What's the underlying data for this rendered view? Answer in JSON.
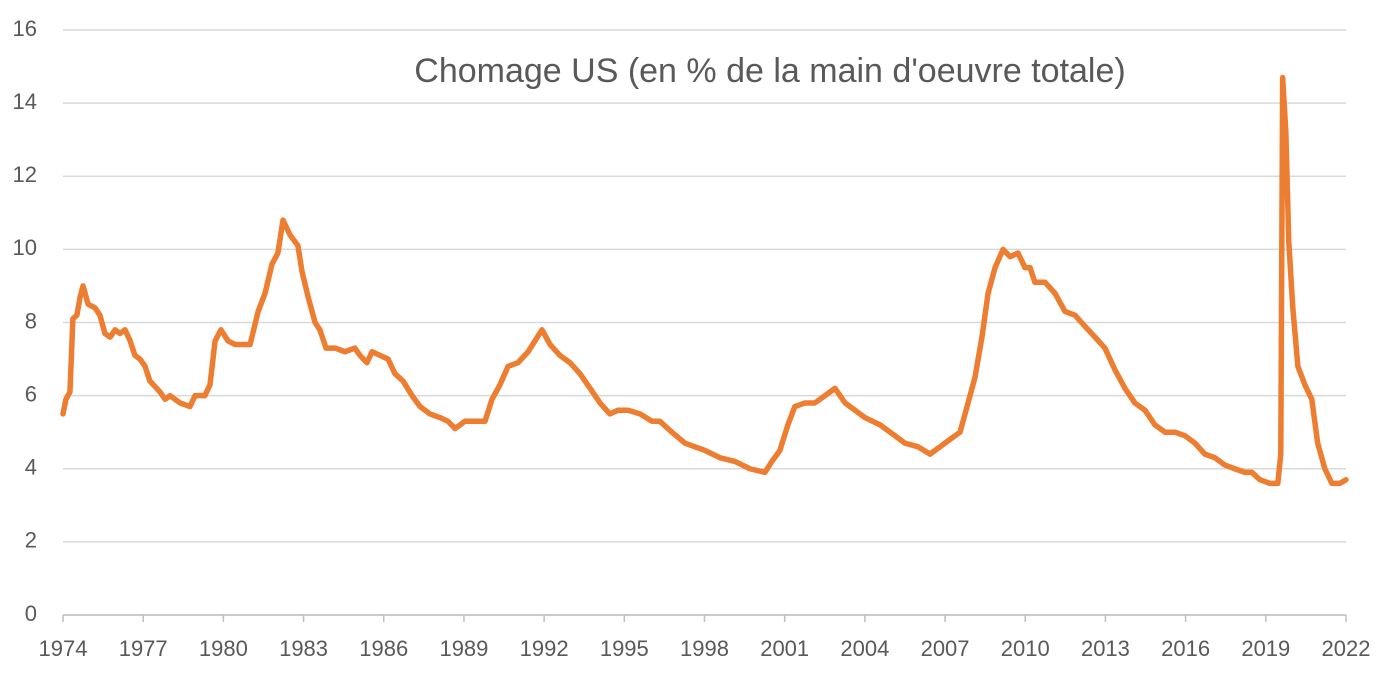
{
  "chart_data": {
    "type": "line",
    "title": "Chomage US (en % de la main d'oeuvre totale)",
    "x": [
      1974.0,
      1974.11,
      1974.26,
      1974.37,
      1974.52,
      1974.64,
      1974.75,
      1974.94,
      1975.2,
      1975.38,
      1975.57,
      1975.76,
      1975.95,
      1976.13,
      1976.32,
      1976.51,
      1976.69,
      1976.88,
      1977.07,
      1977.25,
      1977.63,
      1977.82,
      1978.0,
      1978.38,
      1978.75,
      1978.94,
      1979.31,
      1979.5,
      1979.69,
      1979.91,
      1980.17,
      1980.43,
      1980.7,
      1981.0,
      1981.3,
      1981.56,
      1981.82,
      1982.04,
      1982.23,
      1982.49,
      1982.79,
      1982.94,
      1983.17,
      1983.43,
      1983.61,
      1983.84,
      1984.18,
      1984.55,
      1984.92,
      1985.11,
      1985.37,
      1985.56,
      1985.86,
      1986.16,
      1986.42,
      1986.72,
      1987.06,
      1987.36,
      1987.73,
      1988.1,
      1988.4,
      1988.67,
      1989.04,
      1989.41,
      1989.79,
      1990.05,
      1990.35,
      1990.65,
      1991.02,
      1991.4,
      1991.66,
      1991.92,
      1992.22,
      1992.59,
      1992.97,
      1993.34,
      1993.72,
      1994.09,
      1994.46,
      1994.76,
      1995.14,
      1995.59,
      1996.03,
      1996.33,
      1996.78,
      1997.27,
      1997.64,
      1998.02,
      1998.58,
      1999.14,
      1999.7,
      2000.26,
      2000.52,
      2000.82,
      2001.12,
      2001.38,
      2001.76,
      2002.13,
      2002.51,
      2002.88,
      2003.26,
      2003.63,
      2004.0,
      2004.57,
      2005.13,
      2005.5,
      2005.99,
      2006.44,
      2006.81,
      2007.18,
      2007.56,
      2007.86,
      2008.12,
      2008.38,
      2008.61,
      2008.87,
      2009.17,
      2009.43,
      2009.73,
      2009.99,
      2010.18,
      2010.36,
      2010.74,
      2011.11,
      2011.49,
      2011.86,
      2012.23,
      2012.61,
      2012.98,
      2013.36,
      2013.73,
      2014.1,
      2014.48,
      2014.85,
      2015.23,
      2015.6,
      2015.98,
      2016.35,
      2016.72,
      2017.1,
      2017.47,
      2017.84,
      2018.22,
      2018.48,
      2018.78,
      2019.15,
      2019.45,
      2019.56,
      2019.63,
      2019.75,
      2019.86,
      2020.01,
      2020.2,
      2020.46,
      2020.72,
      2020.94,
      2021.21,
      2021.47,
      2021.77,
      2022.0
    ],
    "series": [
      {
        "color": "#ED7D31",
        "values": [
          5.5,
          5.9,
          6.1,
          8.1,
          8.2,
          8.7,
          9.0,
          8.5,
          8.4,
          8.2,
          7.7,
          7.6,
          7.8,
          7.7,
          7.8,
          7.5,
          7.1,
          7.0,
          6.8,
          6.4,
          6.1,
          5.9,
          6.0,
          5.8,
          5.7,
          6.0,
          6.0,
          6.3,
          7.5,
          7.8,
          7.5,
          7.4,
          7.4,
          7.4,
          8.3,
          8.8,
          9.6,
          9.9,
          10.8,
          10.4,
          10.1,
          9.4,
          8.7,
          8.0,
          7.8,
          7.3,
          7.3,
          7.2,
          7.3,
          7.1,
          6.9,
          7.2,
          7.1,
          7.0,
          6.6,
          6.4,
          6.0,
          5.7,
          5.5,
          5.4,
          5.3,
          5.1,
          5.3,
          5.3,
          5.3,
          5.9,
          6.3,
          6.8,
          6.9,
          7.2,
          7.5,
          7.8,
          7.4,
          7.1,
          6.9,
          6.6,
          6.2,
          5.8,
          5.5,
          5.6,
          5.6,
          5.5,
          5.3,
          5.3,
          5.0,
          4.7,
          4.6,
          4.5,
          4.3,
          4.2,
          4.0,
          3.9,
          4.2,
          4.5,
          5.2,
          5.7,
          5.8,
          5.8,
          6.0,
          6.2,
          5.8,
          5.6,
          5.4,
          5.2,
          4.9,
          4.7,
          4.6,
          4.4,
          4.6,
          4.8,
          5.0,
          5.8,
          6.5,
          7.6,
          8.8,
          9.5,
          10.0,
          9.8,
          9.9,
          9.5,
          9.5,
          9.1,
          9.1,
          8.8,
          8.3,
          8.2,
          7.9,
          7.6,
          7.3,
          6.7,
          6.2,
          5.8,
          5.6,
          5.2,
          5.0,
          5.0,
          4.9,
          4.7,
          4.4,
          4.3,
          4.1,
          4.0,
          3.9,
          3.9,
          3.7,
          3.6,
          3.6,
          4.4,
          14.7,
          13.2,
          10.2,
          8.4,
          6.8,
          6.3,
          5.9,
          4.7,
          4.0,
          3.6,
          3.6,
          3.7
        ]
      }
    ],
    "xlim": [
      1974,
      2022
    ],
    "xticks": [
      1974,
      1977,
      1980,
      1983,
      1986,
      1989,
      1992,
      1995,
      1998,
      2001,
      2004,
      2007,
      2010,
      2013,
      2016,
      2019,
      2022
    ],
    "ylim": [
      0,
      16
    ],
    "yticks": [
      0,
      2,
      4,
      6,
      8,
      10,
      12,
      14,
      16
    ],
    "grid": true
  }
}
